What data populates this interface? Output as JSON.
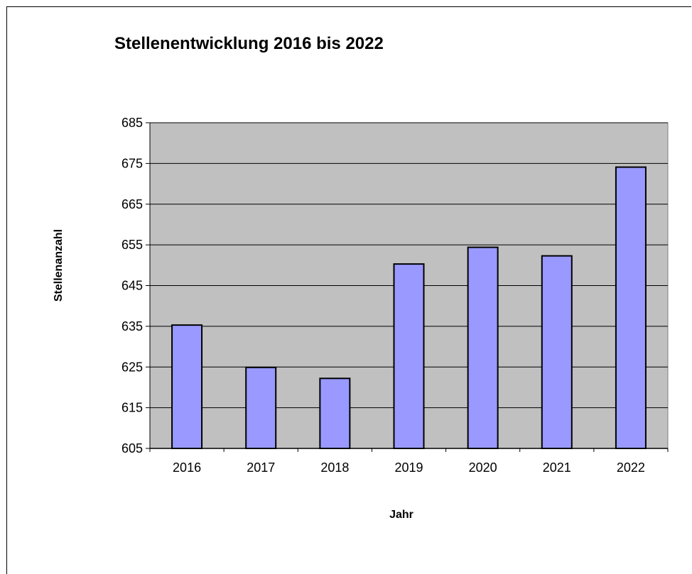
{
  "chart_data": {
    "type": "bar",
    "title": "Stellenentwicklung 2016 bis 2022",
    "xlabel": "Jahr",
    "ylabel": "Stellenanzahl",
    "categories": [
      "2016",
      "2017",
      "2018",
      "2019",
      "2020",
      "2021",
      "2022"
    ],
    "values": [
      635.3,
      624.9,
      622.2,
      650.3,
      654.4,
      652.3,
      674.1
    ],
    "ylim": [
      605,
      685
    ],
    "yticks": [
      685,
      675,
      665,
      655,
      645,
      635,
      625,
      615,
      605
    ],
    "grid": true,
    "legend": "none",
    "colors": {
      "bar_fill": "#9999ff",
      "bar_stroke": "#000000",
      "plot_background": "#c0c0c0",
      "gridline": "#000000"
    }
  }
}
